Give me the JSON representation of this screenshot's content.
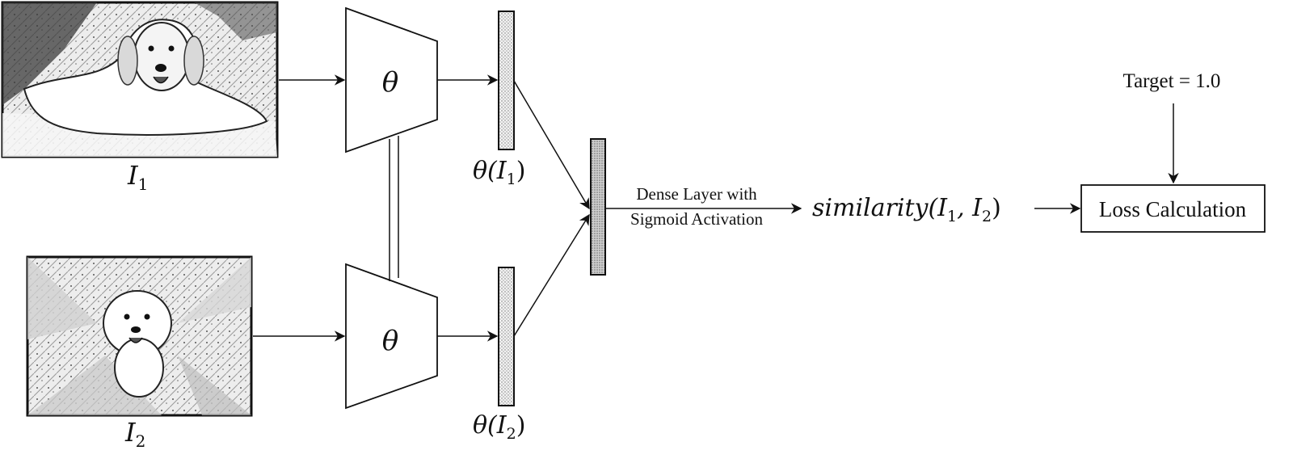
{
  "images": {
    "image1_label": "I",
    "image1_sub": "1",
    "image2_label": "I",
    "image2_sub": "2"
  },
  "encoders": {
    "top_symbol": "θ",
    "bottom_symbol": "θ"
  },
  "embeddings": {
    "top_label": "θ(I",
    "top_sub": "1",
    "top_close": ")",
    "bottom_label": "θ(I",
    "bottom_sub": "2",
    "bottom_close": ")"
  },
  "dense": {
    "line1": "Dense Layer with",
    "line2": "Sigmoid Activation"
  },
  "similarity": {
    "func": "similarity",
    "open": "(I",
    "sub1": "1",
    "comma": ", I",
    "sub2": "2",
    "close": ")"
  },
  "target": {
    "label": "Target = 1.0"
  },
  "loss": {
    "label": "Loss Calculation"
  }
}
